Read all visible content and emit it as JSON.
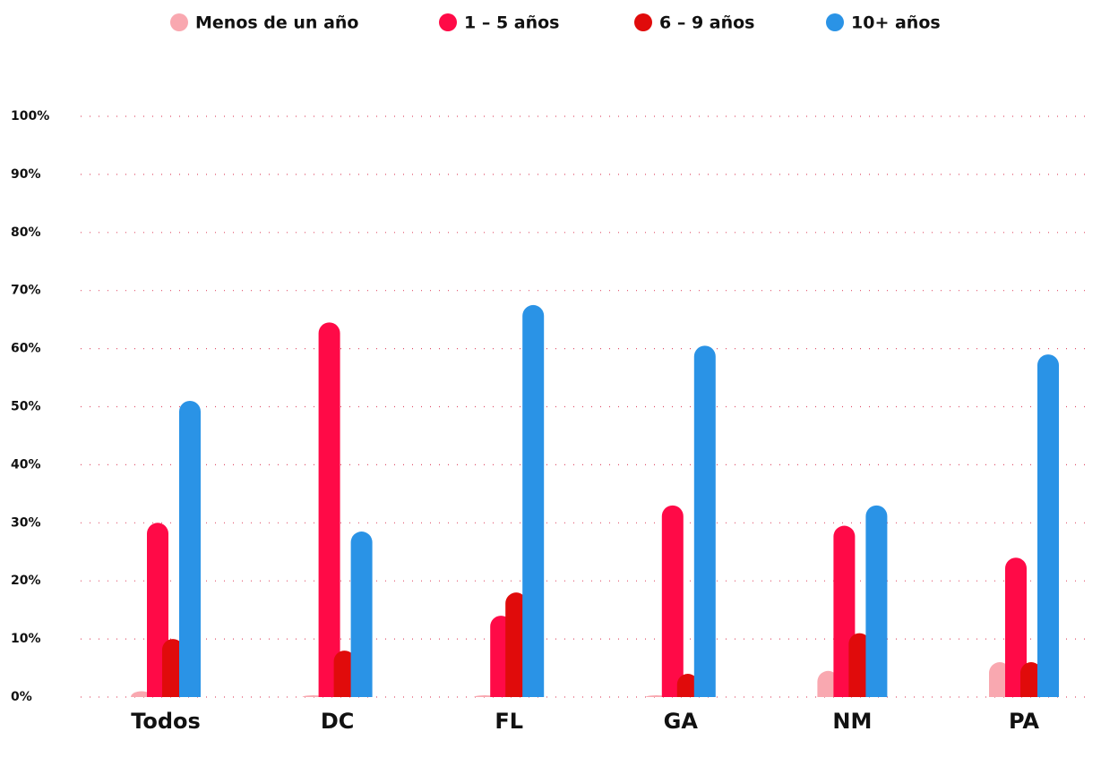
{
  "chart_data": {
    "type": "bar",
    "categories": [
      "Todos",
      "DC",
      "FL",
      "GA",
      "NM",
      "PA"
    ],
    "series": [
      {
        "name": "Menos de un año",
        "color": "#f9a8b0",
        "values": [
          1,
          0.3,
          0.3,
          0.3,
          4.5,
          6
        ]
      },
      {
        "name": "1 – 5 años",
        "color": "#ff0a47",
        "values": [
          30,
          64.5,
          14,
          33,
          29.5,
          24
        ]
      },
      {
        "name": "6 – 9 años",
        "color": "#e00b0b",
        "values": [
          10,
          8,
          18,
          4,
          11,
          6
        ]
      },
      {
        "name": "10+ años",
        "color": "#2a93e6",
        "values": [
          51,
          28.5,
          67.5,
          60.5,
          33,
          59
        ]
      }
    ],
    "ylim": [
      0,
      100
    ],
    "yticks": [
      {
        "value": 0,
        "label": "0%"
      },
      {
        "value": 10,
        "label": "10%"
      },
      {
        "value": 20,
        "label": "20%"
      },
      {
        "value": 30,
        "label": "30%"
      },
      {
        "value": 40,
        "label": "40%"
      },
      {
        "value": 50,
        "label": "50%"
      },
      {
        "value": 60,
        "label": "60%"
      },
      {
        "value": 70,
        "label": "70%"
      },
      {
        "value": 80,
        "label": "80%"
      },
      {
        "value": 90,
        "label": "90%"
      },
      {
        "value": 100,
        "label": "100%"
      }
    ],
    "grid": true
  }
}
